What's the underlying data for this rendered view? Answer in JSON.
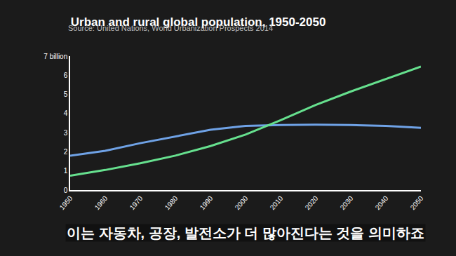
{
  "chart_data": {
    "type": "line",
    "title": "Urban and rural global population, 1950-2050",
    "subtitle": "Source: United Nations, World Urbanization Prospects 2014",
    "annotations": [
      "이는 자동차, 공장, 발전소가 더 많아진다는 것을 의미하죠"
    ],
    "x": [
      1950,
      1960,
      1970,
      1980,
      1990,
      2000,
      2010,
      2020,
      2030,
      2040,
      2050
    ],
    "series": [
      {
        "color": "#6fa2e6",
        "values": [
          1.8,
          2.05,
          2.45,
          2.8,
          3.15,
          3.35,
          3.4,
          3.42,
          3.4,
          3.35,
          3.25
        ]
      },
      {
        "color": "#66e08e",
        "values": [
          0.75,
          1.05,
          1.4,
          1.8,
          2.3,
          2.9,
          3.65,
          4.45,
          5.15,
          5.8,
          6.45
        ]
      }
    ],
    "xlim": [
      1950,
      2050
    ],
    "xticks": [
      1950,
      1960,
      1970,
      1980,
      1990,
      2000,
      2010,
      2020,
      2030,
      2040,
      2050
    ],
    "ylim": [
      0,
      7
    ],
    "yticks": [
      0,
      1,
      2,
      3,
      4,
      5,
      6,
      {
        "value": 7,
        "label": "7 billion"
      }
    ],
    "grid": false
  }
}
